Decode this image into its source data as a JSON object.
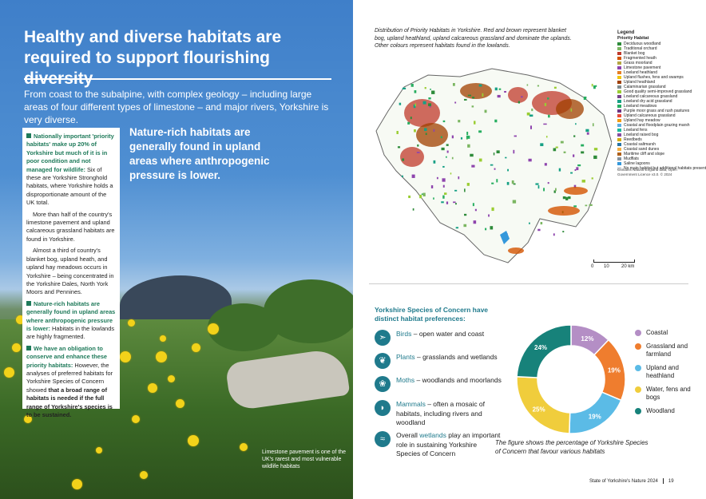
{
  "left": {
    "headline": "Healthy and diverse habitats are required to support flourishing diversity",
    "intro": "From coast to the subalpine, with complex geology – including large areas of four different types of limestone – and major rivers, Yorkshire is very diverse.",
    "callout": "Nature-rich habitats are generally found in upland areas where anthropogenic pressure is lower.",
    "sidebox": {
      "p1_hl": "Nationally important 'priority habitats' make up 20% of Yorkshire but much of it is in poor condition and not managed for wildlife:",
      "p1_text": " Six of these are Yorkshire Stronghold habitats, where Yorkshire holds a disproportionate amount of the UK total.",
      "p2": "More than half of the country's limestone pavement and upland calcareous grassland habitats are found in Yorkshire.",
      "p3": "Almost a third of country's blanket bog, upland heath, and upland hay meadows occurs in Yorkshire – being concentrated in the Yorkshire Dales, North York Moors and Pennines.",
      "p4_hl": "Nature-rich habitats are generally found in upland areas where anthropogenic pressure is lower:",
      "p4_text": " Habitats in the lowlands are highly fragmented.",
      "p5_hl": "We have an obligation to conserve and enhance these priority habitats:",
      "p5_text": " However, the analyses of preferred habitats for Yorkshire Species of Concern showed ",
      "p5_bold": "that a broad range of habitats is needed if the full range of Yorkshire's species is to be sustained."
    },
    "photo_caption": "Limestone pavement is one of the UK's rarest and most vulnerable wildlife habitats"
  },
  "map": {
    "caption": "Distribution of Priority Habitats in Yorkshire. Red and brown represent blanket bog, upland heathland, upland calcareous grassland and dominate the uplands. Other colours represent habitats found in the lowlands.",
    "legend_title": "Legend",
    "legend_subtitle": "Priority Habitat",
    "legend_items": [
      {
        "label": "Deciduous woodland",
        "color": "#2e8b3a"
      },
      {
        "label": "Traditional orchard",
        "color": "#7bb661"
      },
      {
        "label": "Blanket bog",
        "color": "#c0392b"
      },
      {
        "label": "Fragmented heath",
        "color": "#d35400"
      },
      {
        "label": "Grass moorland",
        "color": "#b5a642"
      },
      {
        "label": "Limestone pavement",
        "color": "#8e44ad"
      },
      {
        "label": "Lowland heathland",
        "color": "#e67e22"
      },
      {
        "label": "Upland flushes, fens and swamps",
        "color": "#f1c40f"
      },
      {
        "label": "Upland heathland",
        "color": "#a04000"
      },
      {
        "label": "Calaminarian grassland",
        "color": "#7f8c8d"
      },
      {
        "label": "Good quality semi-improved grassland",
        "color": "#9acd32"
      },
      {
        "label": "Lowland calcareous grassland",
        "color": "#76448a"
      },
      {
        "label": "Lowland dry acid grassland",
        "color": "#16a085"
      },
      {
        "label": "Lowland meadows",
        "color": "#27ae60"
      },
      {
        "label": "Purple moor grass and rush pastures",
        "color": "#6c3483"
      },
      {
        "label": "Upland calcareous grassland",
        "color": "#e74c3c"
      },
      {
        "label": "Upland hay meadow",
        "color": "#f39c12"
      },
      {
        "label": "Coastal and floodplain grazing marsh",
        "color": "#5dade2"
      },
      {
        "label": "Lowland fens",
        "color": "#1abc9c"
      },
      {
        "label": "Lowland raised bog",
        "color": "#884ea0"
      },
      {
        "label": "Reedbeds",
        "color": "#d4ac0d"
      },
      {
        "label": "Coastal saltmarsh",
        "color": "#2874a6"
      },
      {
        "label": "Coastal sand dunes",
        "color": "#f5b041"
      },
      {
        "label": "Maritime cliff and slope",
        "color": "#af601a"
      },
      {
        "label": "Mudflats",
        "color": "#85929e"
      },
      {
        "label": "Saline lagoons",
        "color": "#3498db"
      },
      {
        "label": "No main habitat but additional habitats present",
        "color": "#d5d8dc"
      }
    ],
    "source": "Contains Natural England data, Open Government Licence v3.0. © 2024",
    "scale_0": "0",
    "scale_1": "10",
    "scale_2": "20 km"
  },
  "species": {
    "title": "Yorkshire Species of Concern have distinct habitat preferences:",
    "items": [
      {
        "key": "Birds",
        "rest": " – open water and coast",
        "icon": "bird-icon"
      },
      {
        "key": "Plants",
        "rest": " – grasslands and wetlands",
        "icon": "leaf-icon"
      },
      {
        "key": "Moths",
        "rest": " – woodlands and moorlands",
        "icon": "moth-icon"
      },
      {
        "key": "Mammals",
        "rest": " – often a mosaic of habitats, including rivers and woodland",
        "icon": "mammal-icon"
      },
      {
        "pre": "Overall ",
        "key": "wetlands",
        "rest": " play an important role in sustaining Yorkshire Species of Concern",
        "icon": "water-waves-icon"
      }
    ]
  },
  "chart_data": {
    "type": "pie",
    "categories": [
      "Coastal",
      "Grassland and farmland",
      "Upland and heathland",
      "Water, fens and bogs",
      "Woodland"
    ],
    "values": [
      12,
      19,
      19,
      25,
      24
    ],
    "data_labels": [
      "12%",
      "19%",
      "19%",
      "25%",
      "24%"
    ],
    "colors": [
      "#b48ec5",
      "#ef7d2e",
      "#5bbbe6",
      "#f0cd3c",
      "#17827a"
    ],
    "legend_position": "right",
    "caption": "The figure shows the percentage of Yorkshire Species of Concern that favour various habitats"
  },
  "footer": {
    "title": "State of Yorkshire's Nature 2024",
    "page": "19"
  }
}
